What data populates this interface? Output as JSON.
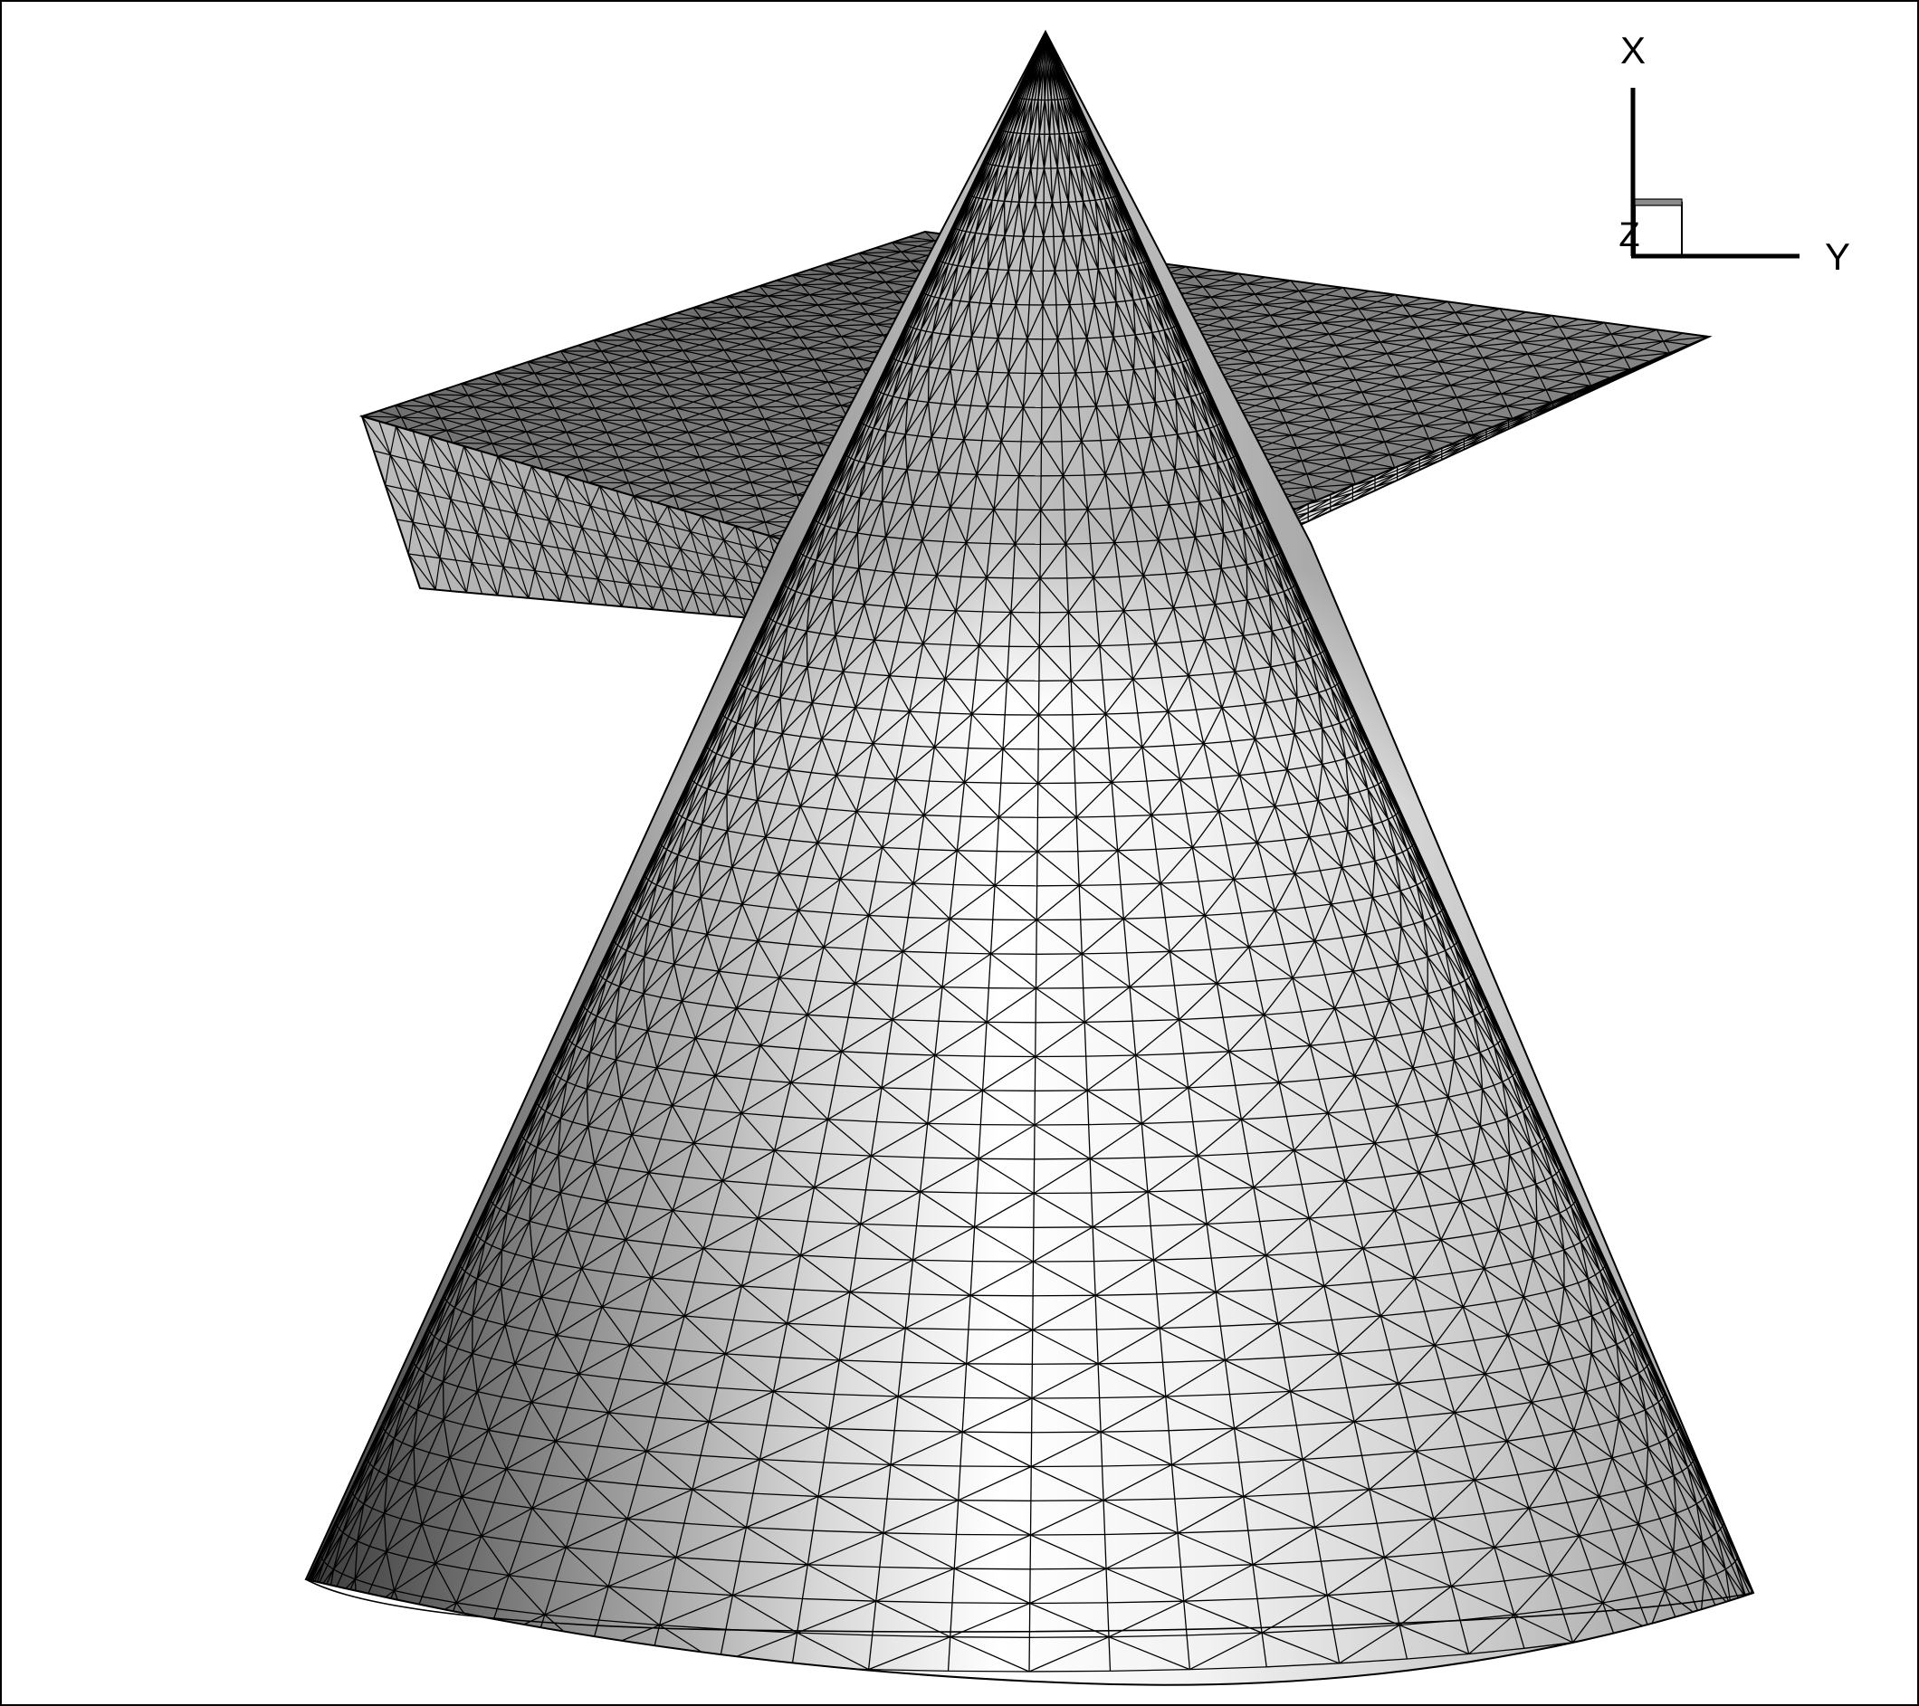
{
  "view": {
    "background": "#ffffff",
    "frame_color": "#000000",
    "mesh_line_color": "#000000",
    "surface_light": "#ffffff",
    "surface_dark": "#3c3c3c"
  },
  "axes_triad": {
    "x_label": "X",
    "y_label": "Y",
    "z_label": "Z"
  },
  "scene": {
    "objects": [
      "cone-surface-mesh",
      "rectangular-slab-mesh"
    ],
    "mesh_type": "triangular"
  }
}
